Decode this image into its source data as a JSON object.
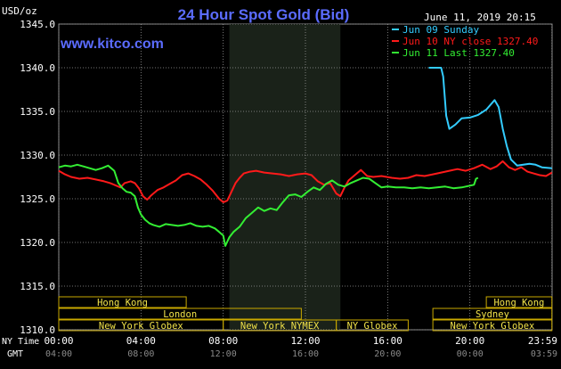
{
  "header": {
    "title": "24 Hour Spot Gold (Bid)",
    "unit": "USD/oz",
    "date": "June 11, 2019 20:15",
    "site": "www.kitco.com"
  },
  "legend": [
    {
      "label": "Jun 09 Sunday",
      "color": "#33ccff"
    },
    {
      "label": "Jun 10 NY close 1327.40",
      "color": "#ff1a1a"
    },
    {
      "label": "Jun 11 Last 1327.40",
      "color": "#33ee33"
    }
  ],
  "axis": {
    "y_ticks": [
      "1345.0",
      "1340.0",
      "1335.0",
      "1330.0",
      "1325.0",
      "1320.0",
      "1315.0",
      "1310.0"
    ],
    "row_labels": {
      "ny": "NY Time",
      "gmt": "GMT"
    },
    "ny_ticks": [
      "00:00",
      "04:00",
      "08:00",
      "12:00",
      "16:00",
      "20:00",
      "23:59"
    ],
    "gmt_ticks": [
      "04:00",
      "08:00",
      "12:00",
      "16:00",
      "20:00",
      "00:00",
      "03:59"
    ]
  },
  "sessions": [
    {
      "label": "Hong Kong",
      "row": 0,
      "start": 0,
      "end": 6.2
    },
    {
      "label": "Hong Kong",
      "row": 0,
      "start": 20.8,
      "end": 23.99
    },
    {
      "label": "Sydney",
      "row": 1,
      "start": 18.2,
      "end": 23.99
    },
    {
      "label": "London",
      "row": 1,
      "start": 0,
      "end": 11.8
    },
    {
      "label": "New York Globex",
      "row": 2,
      "start": 0,
      "end": 8.0
    },
    {
      "label": "New York NYMEX",
      "row": 2,
      "start": 8.0,
      "end": 13.5
    },
    {
      "label": "NY Globex",
      "row": 2,
      "start": 13.5,
      "end": 17.0
    },
    {
      "label": "New York Globex",
      "row": 2,
      "start": 18.2,
      "end": 23.99
    }
  ],
  "chart_data": {
    "type": "line",
    "title": "24 Hour Spot Gold (Bid)",
    "ylabel": "USD/oz",
    "xlabel": "NY Time",
    "xlim": [
      0,
      24
    ],
    "ylim": [
      1310,
      1345
    ],
    "shaded_x": [
      8.3,
      13.7
    ],
    "series": [
      {
        "name": "Jun 09 Sunday",
        "color": "#33ccff",
        "points": [
          [
            18.0,
            1340.0
          ],
          [
            18.6,
            1340.0
          ],
          [
            18.7,
            1339.0
          ],
          [
            18.85,
            1334.5
          ],
          [
            19.0,
            1333.0
          ],
          [
            19.3,
            1333.5
          ],
          [
            19.6,
            1334.2
          ],
          [
            20.0,
            1334.3
          ],
          [
            20.4,
            1334.6
          ],
          [
            20.8,
            1335.2
          ],
          [
            21.2,
            1336.3
          ],
          [
            21.4,
            1335.5
          ],
          [
            21.6,
            1333.0
          ],
          [
            21.8,
            1331.0
          ],
          [
            22.0,
            1329.5
          ],
          [
            22.3,
            1328.8
          ],
          [
            22.6,
            1328.9
          ],
          [
            22.9,
            1329.0
          ],
          [
            23.2,
            1328.9
          ],
          [
            23.5,
            1328.6
          ],
          [
            23.99,
            1328.5
          ]
        ]
      },
      {
        "name": "Jun 10 NY close 1327.40",
        "color": "#ff1a1a",
        "points": [
          [
            0.0,
            1328.2
          ],
          [
            0.3,
            1327.8
          ],
          [
            0.6,
            1327.5
          ],
          [
            1.0,
            1327.3
          ],
          [
            1.4,
            1327.4
          ],
          [
            1.8,
            1327.2
          ],
          [
            2.2,
            1327.0
          ],
          [
            2.5,
            1326.8
          ],
          [
            2.8,
            1326.5
          ],
          [
            3.0,
            1326.3
          ],
          [
            3.2,
            1326.8
          ],
          [
            3.5,
            1327.0
          ],
          [
            3.7,
            1326.8
          ],
          [
            3.9,
            1326.2
          ],
          [
            4.1,
            1325.3
          ],
          [
            4.3,
            1324.9
          ],
          [
            4.5,
            1325.4
          ],
          [
            4.8,
            1326.0
          ],
          [
            5.1,
            1326.3
          ],
          [
            5.4,
            1326.7
          ],
          [
            5.7,
            1327.1
          ],
          [
            6.0,
            1327.7
          ],
          [
            6.3,
            1327.9
          ],
          [
            6.6,
            1327.6
          ],
          [
            6.9,
            1327.2
          ],
          [
            7.2,
            1326.6
          ],
          [
            7.5,
            1325.9
          ],
          [
            7.8,
            1325.0
          ],
          [
            8.0,
            1324.6
          ],
          [
            8.2,
            1324.8
          ],
          [
            8.4,
            1325.8
          ],
          [
            8.6,
            1326.8
          ],
          [
            8.8,
            1327.4
          ],
          [
            9.0,
            1327.9
          ],
          [
            9.3,
            1328.1
          ],
          [
            9.6,
            1328.2
          ],
          [
            10.0,
            1328.0
          ],
          [
            10.4,
            1327.9
          ],
          [
            10.8,
            1327.8
          ],
          [
            11.2,
            1327.6
          ],
          [
            11.6,
            1327.8
          ],
          [
            12.0,
            1327.9
          ],
          [
            12.3,
            1327.7
          ],
          [
            12.6,
            1327.0
          ],
          [
            12.9,
            1326.6
          ],
          [
            13.2,
            1326.8
          ],
          [
            13.5,
            1325.6
          ],
          [
            13.7,
            1325.3
          ],
          [
            13.9,
            1326.3
          ],
          [
            14.1,
            1327.1
          ],
          [
            14.4,
            1327.7
          ],
          [
            14.7,
            1328.3
          ],
          [
            15.0,
            1327.6
          ],
          [
            15.3,
            1327.5
          ],
          [
            15.7,
            1327.6
          ],
          [
            16.2,
            1327.4
          ],
          [
            16.6,
            1327.3
          ],
          [
            17.0,
            1327.4
          ],
          [
            17.4,
            1327.7
          ],
          [
            17.8,
            1327.6
          ],
          [
            18.2,
            1327.8
          ],
          [
            18.6,
            1328.0
          ],
          [
            19.0,
            1328.2
          ],
          [
            19.4,
            1328.4
          ],
          [
            19.8,
            1328.2
          ],
          [
            20.2,
            1328.5
          ],
          [
            20.6,
            1328.9
          ],
          [
            21.0,
            1328.4
          ],
          [
            21.3,
            1328.7
          ],
          [
            21.6,
            1329.3
          ],
          [
            21.9,
            1328.6
          ],
          [
            22.2,
            1328.3
          ],
          [
            22.5,
            1328.6
          ],
          [
            22.8,
            1328.1
          ],
          [
            23.1,
            1327.9
          ],
          [
            23.4,
            1327.7
          ],
          [
            23.7,
            1327.6
          ],
          [
            23.99,
            1328.0
          ]
        ]
      },
      {
        "name": "Jun 11 Last 1327.40",
        "color": "#33ee33",
        "points": [
          [
            0.0,
            1328.6
          ],
          [
            0.3,
            1328.8
          ],
          [
            0.6,
            1328.7
          ],
          [
            0.9,
            1328.9
          ],
          [
            1.2,
            1328.7
          ],
          [
            1.5,
            1328.5
          ],
          [
            1.8,
            1328.3
          ],
          [
            2.1,
            1328.5
          ],
          [
            2.4,
            1328.8
          ],
          [
            2.7,
            1328.2
          ],
          [
            2.9,
            1326.8
          ],
          [
            3.1,
            1326.2
          ],
          [
            3.3,
            1325.8
          ],
          [
            3.5,
            1325.7
          ],
          [
            3.7,
            1325.3
          ],
          [
            3.85,
            1324.0
          ],
          [
            4.0,
            1323.2
          ],
          [
            4.2,
            1322.6
          ],
          [
            4.4,
            1322.2
          ],
          [
            4.6,
            1322.0
          ],
          [
            4.9,
            1321.8
          ],
          [
            5.2,
            1322.1
          ],
          [
            5.5,
            1322.0
          ],
          [
            5.8,
            1321.9
          ],
          [
            6.1,
            1322.0
          ],
          [
            6.4,
            1322.2
          ],
          [
            6.7,
            1321.9
          ],
          [
            7.0,
            1321.8
          ],
          [
            7.3,
            1321.9
          ],
          [
            7.6,
            1321.6
          ],
          [
            7.8,
            1321.2
          ],
          [
            8.0,
            1320.8
          ],
          [
            8.1,
            1319.6
          ],
          [
            8.3,
            1320.6
          ],
          [
            8.5,
            1321.2
          ],
          [
            8.8,
            1321.8
          ],
          [
            9.1,
            1322.8
          ],
          [
            9.4,
            1323.4
          ],
          [
            9.7,
            1324.0
          ],
          [
            10.0,
            1323.6
          ],
          [
            10.3,
            1323.9
          ],
          [
            10.6,
            1323.7
          ],
          [
            10.9,
            1324.6
          ],
          [
            11.2,
            1325.4
          ],
          [
            11.5,
            1325.5
          ],
          [
            11.8,
            1325.2
          ],
          [
            12.1,
            1325.8
          ],
          [
            12.4,
            1326.3
          ],
          [
            12.7,
            1326.0
          ],
          [
            13.0,
            1326.7
          ],
          [
            13.3,
            1327.1
          ],
          [
            13.6,
            1326.6
          ],
          [
            13.9,
            1326.4
          ],
          [
            14.2,
            1326.8
          ],
          [
            14.5,
            1327.1
          ],
          [
            14.8,
            1327.4
          ],
          [
            15.1,
            1327.3
          ],
          [
            15.4,
            1326.8
          ],
          [
            15.7,
            1326.3
          ],
          [
            16.0,
            1326.4
          ],
          [
            16.4,
            1326.3
          ],
          [
            16.8,
            1326.3
          ],
          [
            17.2,
            1326.2
          ],
          [
            17.6,
            1326.3
          ],
          [
            18.0,
            1326.2
          ],
          [
            18.4,
            1326.3
          ],
          [
            18.8,
            1326.4
          ],
          [
            19.2,
            1326.2
          ],
          [
            19.6,
            1326.3
          ],
          [
            20.0,
            1326.5
          ],
          [
            20.2,
            1326.6
          ],
          [
            20.3,
            1327.3
          ],
          [
            20.4,
            1327.4
          ]
        ]
      }
    ]
  }
}
